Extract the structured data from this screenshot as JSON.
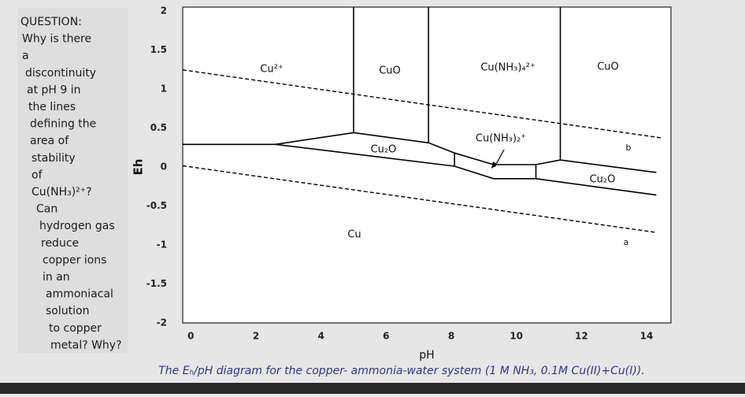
{
  "chart_data": {
    "type": "line",
    "xlabel": "pH",
    "ylabel": "Eh",
    "caption": "The Eₕ/pH diagram for the copper- ammonia-water system (1 M NH₃, 0.1M Cu(II)+Cu(I)).",
    "xlim": [
      -0.25,
      14.75
    ],
    "ylim": [
      -2,
      2.05
    ],
    "xticks": [
      0,
      2,
      4,
      6,
      8,
      10,
      12,
      14
    ],
    "yticks": [
      2,
      1.5,
      1,
      0.5,
      0,
      -0.5,
      -1,
      -1.5,
      -2
    ],
    "series": [
      {
        "color": "#000000",
        "x": [
          -0.25,
          2.6
        ],
        "values": [
          0.29,
          0.29
        ]
      },
      {
        "color": "#000000",
        "x": [
          2.6,
          8.1,
          9.3,
          10.6,
          14.3
        ],
        "values": [
          0.29,
          0.01,
          -0.15,
          -0.15,
          -0.36
        ]
      },
      {
        "color": "#000000",
        "x": [
          2.6,
          5.0,
          7.3,
          8.1,
          9.3,
          10.6,
          11.35,
          14.3
        ],
        "values": [
          0.29,
          0.44,
          0.31,
          0.18,
          0.03,
          0.03,
          0.09,
          -0.07
        ]
      },
      {
        "color": "#000000",
        "x": [
          5.0,
          5.0
        ],
        "values": [
          2.05,
          0.44
        ]
      },
      {
        "color": "#000000",
        "x": [
          7.3,
          7.3
        ],
        "values": [
          2.05,
          0.31
        ]
      },
      {
        "color": "#000000",
        "x": [
          8.1,
          8.1
        ],
        "values": [
          0.18,
          0.01
        ]
      },
      {
        "color": "#000000",
        "x": [
          10.6,
          10.6
        ],
        "values": [
          0.03,
          -0.15
        ]
      },
      {
        "color": "#000000",
        "x": [
          11.35,
          11.35
        ],
        "values": [
          2.05,
          0.09
        ]
      },
      {
        "color": "#000000",
        "dashed": true,
        "x": [
          -0.25,
          14.5
        ],
        "values": [
          1.245,
          0.37
        ]
      },
      {
        "color": "#000000",
        "dashed": true,
        "x": [
          -0.25,
          14.3
        ],
        "values": [
          0.015,
          -0.84
        ]
      }
    ],
    "annotations": [
      "Cu²⁺",
      "CuO",
      "Cu(NH₃)₄²⁺",
      "CuO",
      "Cu₂O",
      "Cu(NH₃)₂⁺",
      "Cu₂O",
      "Cu",
      "a",
      "b"
    ]
  },
  "question": {
    "lines": [
      "QUESTION:",
      "Why is there",
      "a",
      "discontinuity",
      "at pH 9 in",
      "the lines",
      "defining the",
      "area of",
      "stability",
      "of",
      "Cu(NH₃)²⁺?",
      "Can",
      "hydrogen gas",
      "reduce",
      "copper ions",
      "in an",
      "ammoniacal",
      "solution",
      "to copper",
      "metal? Why?"
    ]
  }
}
